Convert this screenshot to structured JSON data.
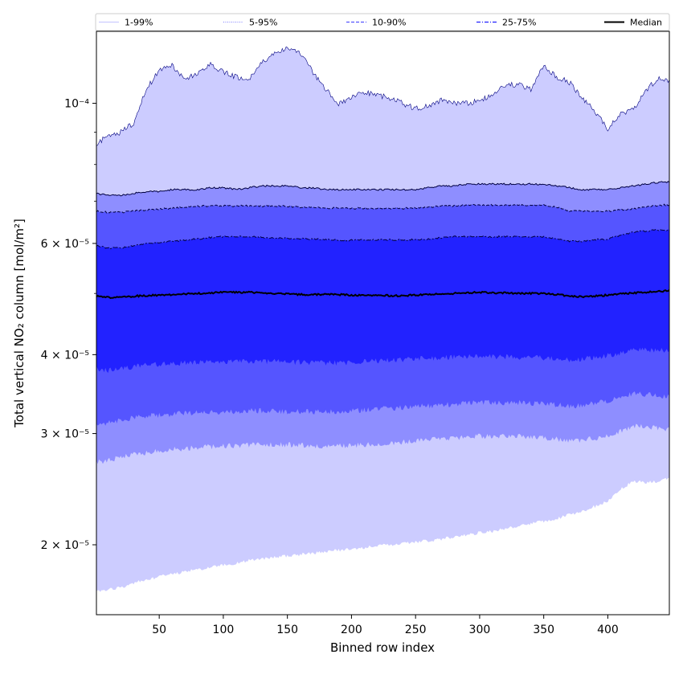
{
  "chart_data": {
    "type": "area",
    "title": "",
    "xlabel": "Binned row index",
    "ylabel": "Total vertical NO₂ column [mol/m²]",
    "xlim": [
      1,
      448
    ],
    "ylim": [
      1.55e-05,
      0.00013
    ],
    "yscale": "log",
    "grid": false,
    "legend_location": "top",
    "x_ticks": [
      50,
      100,
      150,
      200,
      250,
      300,
      350,
      400
    ],
    "y_ticks": [
      {
        "value": 2e-05,
        "label": "2 × 10⁻⁵"
      },
      {
        "value": 3e-05,
        "label": "3 × 10⁻⁵"
      },
      {
        "value": 4e-05,
        "label": "4 × 10⁻⁵"
      },
      {
        "value": 6e-05,
        "label": "6 × 10⁻⁵"
      },
      {
        "value": 0.0001,
        "label": "10⁻⁴"
      }
    ],
    "x": [
      1,
      10,
      20,
      30,
      40,
      50,
      60,
      70,
      80,
      90,
      100,
      110,
      120,
      130,
      140,
      150,
      160,
      170,
      180,
      190,
      200,
      210,
      220,
      230,
      240,
      250,
      260,
      270,
      280,
      290,
      300,
      310,
      320,
      330,
      340,
      350,
      360,
      370,
      380,
      390,
      400,
      410,
      420,
      430,
      440,
      448
    ],
    "bands": [
      {
        "name": "1-99%",
        "color": "#ccccff",
        "upper": [
          8.6e-05,
          8.9e-05,
          9e-05,
          9.3e-05,
          0.000105,
          0.000113,
          0.000115,
          0.000109,
          0.000112,
          0.000115,
          0.000112,
          0.00011,
          0.000109,
          0.000116,
          0.00012,
          0.000122,
          0.00012,
          0.000112,
          0.000105,
          0.0001,
          0.000102,
          0.000104,
          0.000103,
          0.000102,
          0.0001,
          9.8e-05,
          9.9e-05,
          0.000101,
          0.0001,
          0.0001,
          0.000101,
          0.000103,
          0.000107,
          0.000107,
          0.000105,
          0.000115,
          0.00011,
          0.000108,
          0.000102,
          9.7e-05,
          9.1e-05,
          9.6e-05,
          9.8e-05,
          0.000105,
          0.00011,
          0.000108
        ],
        "lower": [
          1.69e-05,
          1.7e-05,
          1.71e-05,
          1.74e-05,
          1.76e-05,
          1.78e-05,
          1.8e-05,
          1.81e-05,
          1.83e-05,
          1.84e-05,
          1.86e-05,
          1.87e-05,
          1.89e-05,
          1.9e-05,
          1.91e-05,
          1.92e-05,
          1.93e-05,
          1.94e-05,
          1.95e-05,
          1.96e-05,
          1.97e-05,
          1.98e-05,
          1.99e-05,
          2e-05,
          2.01e-05,
          2.02e-05,
          2.03e-05,
          2.04e-05,
          2.06e-05,
          2.07e-05,
          2.09e-05,
          2.1e-05,
          2.12e-05,
          2.14e-05,
          2.16e-05,
          2.18e-05,
          2.2e-05,
          2.23e-05,
          2.26e-05,
          2.3e-05,
          2.35e-05,
          2.45e-05,
          2.52e-05,
          2.51e-05,
          2.52e-05,
          2.56e-05
        ]
      },
      {
        "name": "5-95%",
        "color": "#8e8eff",
        "upper": [
          7.2e-05,
          7.15e-05,
          7.15e-05,
          7.2e-05,
          7.25e-05,
          7.25e-05,
          7.3e-05,
          7.3e-05,
          7.3e-05,
          7.35e-05,
          7.35e-05,
          7.3e-05,
          7.35e-05,
          7.4e-05,
          7.4e-05,
          7.4e-05,
          7.35e-05,
          7.35e-05,
          7.3e-05,
          7.3e-05,
          7.3e-05,
          7.3e-05,
          7.3e-05,
          7.3e-05,
          7.3e-05,
          7.3e-05,
          7.35e-05,
          7.4e-05,
          7.4e-05,
          7.45e-05,
          7.45e-05,
          7.45e-05,
          7.45e-05,
          7.45e-05,
          7.45e-05,
          7.45e-05,
          7.4e-05,
          7.35e-05,
          7.3e-05,
          7.3e-05,
          7.3e-05,
          7.35e-05,
          7.4e-05,
          7.45e-05,
          7.5e-05,
          7.5e-05
        ],
        "lower": [
          2.7e-05,
          2.72e-05,
          2.75e-05,
          2.78e-05,
          2.8e-05,
          2.82e-05,
          2.83e-05,
          2.84e-05,
          2.85e-05,
          2.86e-05,
          2.87e-05,
          2.87e-05,
          2.88e-05,
          2.88e-05,
          2.88e-05,
          2.88e-05,
          2.88e-05,
          2.87e-05,
          2.87e-05,
          2.87e-05,
          2.87e-05,
          2.88e-05,
          2.89e-05,
          2.9e-05,
          2.91e-05,
          2.92e-05,
          2.93e-05,
          2.94e-05,
          2.95e-05,
          2.96e-05,
          2.97e-05,
          2.97e-05,
          2.97e-05,
          2.97e-05,
          2.96e-05,
          2.95e-05,
          2.94e-05,
          2.93e-05,
          2.93e-05,
          2.95e-05,
          2.98e-05,
          3.03e-05,
          3.08e-05,
          3.08e-05,
          3.05e-05,
          3.05e-05
        ]
      },
      {
        "name": "10-90%",
        "color": "#5555ff",
        "upper": [
          6.75e-05,
          6.72e-05,
          6.72e-05,
          6.75e-05,
          6.78e-05,
          6.8e-05,
          6.82e-05,
          6.85e-05,
          6.87e-05,
          6.88e-05,
          6.88e-05,
          6.88e-05,
          6.88e-05,
          6.88e-05,
          6.88e-05,
          6.87e-05,
          6.85e-05,
          6.85e-05,
          6.83e-05,
          6.82e-05,
          6.82e-05,
          6.82e-05,
          6.82e-05,
          6.82e-05,
          6.82e-05,
          6.83e-05,
          6.85e-05,
          6.87e-05,
          6.88e-05,
          6.9e-05,
          6.9e-05,
          6.9e-05,
          6.9e-05,
          6.9e-05,
          6.9e-05,
          6.9e-05,
          6.85e-05,
          6.75e-05,
          6.75e-05,
          6.75e-05,
          6.75e-05,
          6.78e-05,
          6.8e-05,
          6.85e-05,
          6.9e-05,
          6.9e-05
        ],
        "lower": [
          3.1e-05,
          3.12e-05,
          3.15e-05,
          3.18e-05,
          3.2e-05,
          3.21e-05,
          3.22e-05,
          3.23e-05,
          3.24e-05,
          3.24e-05,
          3.25e-05,
          3.25e-05,
          3.26e-05,
          3.26e-05,
          3.25e-05,
          3.25e-05,
          3.25e-05,
          3.25e-05,
          3.25e-05,
          3.25e-05,
          3.26e-05,
          3.27e-05,
          3.28e-05,
          3.29e-05,
          3.3e-05,
          3.31e-05,
          3.32e-05,
          3.33e-05,
          3.34e-05,
          3.35e-05,
          3.36e-05,
          3.36e-05,
          3.36e-05,
          3.36e-05,
          3.35e-05,
          3.34e-05,
          3.33e-05,
          3.32e-05,
          3.32e-05,
          3.35e-05,
          3.38e-05,
          3.42e-05,
          3.47e-05,
          3.46e-05,
          3.44e-05,
          3.44e-05
        ]
      },
      {
        "name": "25-75%",
        "color": "#2222ff",
        "upper": [
          5.95e-05,
          5.9e-05,
          5.9e-05,
          5.95e-05,
          6e-05,
          6.02e-05,
          6.05e-05,
          6.07e-05,
          6.1e-05,
          6.13e-05,
          6.15e-05,
          6.15e-05,
          6.15e-05,
          6.13e-05,
          6.12e-05,
          6.12e-05,
          6.1e-05,
          6.1e-05,
          6.08e-05,
          6.07e-05,
          6.07e-05,
          6.08e-05,
          6.08e-05,
          6.08e-05,
          6.08e-05,
          6.08e-05,
          6.1e-05,
          6.12e-05,
          6.15e-05,
          6.15e-05,
          6.15e-05,
          6.15e-05,
          6.15e-05,
          6.15e-05,
          6.15e-05,
          6.15e-05,
          6.1e-05,
          6.05e-05,
          6.05e-05,
          6.08e-05,
          6.1e-05,
          6.18e-05,
          6.25e-05,
          6.28e-05,
          6.3e-05,
          6.3e-05
        ],
        "lower": [
          3.8e-05,
          3.78e-05,
          3.8e-05,
          3.83e-05,
          3.85e-05,
          3.86e-05,
          3.87e-05,
          3.88e-05,
          3.89e-05,
          3.89e-05,
          3.9e-05,
          3.9e-05,
          3.9e-05,
          3.9e-05,
          3.9e-05,
          3.89e-05,
          3.89e-05,
          3.88e-05,
          3.88e-05,
          3.88e-05,
          3.89e-05,
          3.9e-05,
          3.91e-05,
          3.92e-05,
          3.93e-05,
          3.94e-05,
          3.95e-05,
          3.96e-05,
          3.97e-05,
          3.97e-05,
          3.97e-05,
          3.97e-05,
          3.97e-05,
          3.96e-05,
          3.96e-05,
          3.95e-05,
          3.94e-05,
          3.93e-05,
          3.94e-05,
          3.96e-05,
          3.99e-05,
          4.02e-05,
          4.06e-05,
          4.07e-05,
          4.06e-05,
          4.06e-05
        ]
      }
    ],
    "median": {
      "name": "Median",
      "color": "#000000",
      "values": [
        4.95e-05,
        4.93e-05,
        4.93e-05,
        4.95e-05,
        4.96e-05,
        4.97e-05,
        4.98e-05,
        4.99e-05,
        5e-05,
        5.01e-05,
        5.02e-05,
        5.02e-05,
        5.02e-05,
        5.01e-05,
        5e-05,
        4.99e-05,
        4.98e-05,
        4.98e-05,
        4.98e-05,
        4.98e-05,
        4.97e-05,
        4.97e-05,
        4.97e-05,
        4.96e-05,
        4.96e-05,
        4.97e-05,
        4.98e-05,
        4.99e-05,
        5e-05,
        5.01e-05,
        5.02e-05,
        5.01e-05,
        5.01e-05,
        5e-05,
        5e-05,
        5e-05,
        4.98e-05,
        4.95e-05,
        4.94e-05,
        4.95e-05,
        4.97e-05,
        4.99e-05,
        5.01e-05,
        5.02e-05,
        5.04e-05,
        5.05e-05
      ]
    },
    "legend": [
      {
        "label": "1-99%",
        "color": "#ccccff",
        "style": "solid"
      },
      {
        "label": "5-95%",
        "color": "#8e8eff",
        "style": "dotted"
      },
      {
        "label": "10-90%",
        "color": "#5555ff",
        "style": "dashed"
      },
      {
        "label": "25-75%",
        "color": "#2222ff",
        "style": "dashdot"
      },
      {
        "label": "Median",
        "color": "#000000",
        "style": "solid"
      }
    ]
  }
}
